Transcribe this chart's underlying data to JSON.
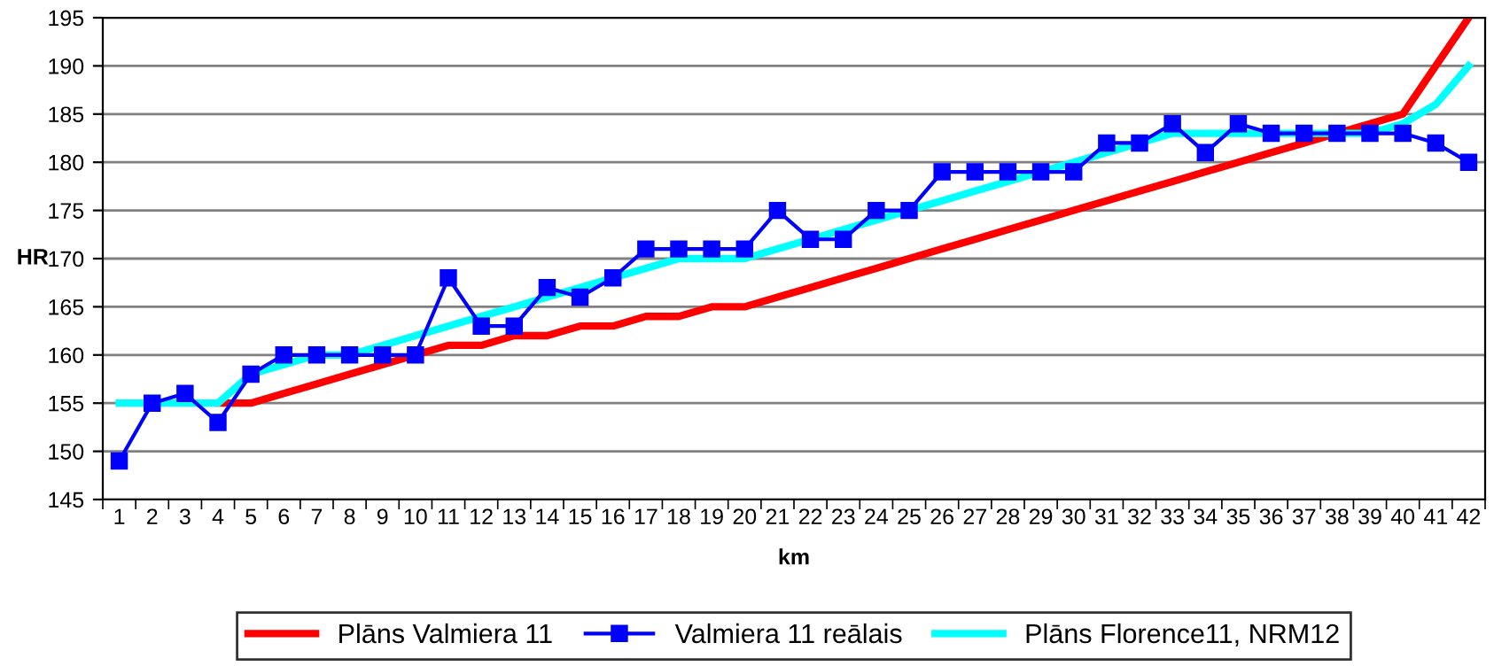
{
  "chart_data": {
    "type": "line",
    "xlabel": "km",
    "ylabel": "HR",
    "categories": [
      "1",
      "2",
      "3",
      "4",
      "5",
      "6",
      "7",
      "8",
      "9",
      "10",
      "11",
      "12",
      "13",
      "14",
      "15",
      "16",
      "17",
      "18",
      "19",
      "20",
      "21",
      "22",
      "23",
      "24",
      "25",
      "26",
      "27",
      "28",
      "29",
      "30",
      "31",
      "32",
      "33",
      "34",
      "35",
      "36",
      "37",
      "38",
      "39",
      "40",
      "41",
      "42"
    ],
    "series": [
      {
        "name": "Plāns Valmiera 11",
        "color": "#ff0000",
        "marker": "none",
        "values": [
          null,
          null,
          null,
          155,
          155,
          156,
          157,
          158,
          159,
          160,
          161,
          161,
          162,
          162,
          163,
          163,
          164,
          164,
          165,
          165,
          166,
          167,
          168,
          169,
          170,
          171,
          172,
          173,
          174,
          175,
          176,
          177,
          178,
          179,
          180,
          181,
          182,
          183,
          184,
          185,
          190,
          195
        ]
      },
      {
        "name": "Valmiera 11 reālais",
        "color": "#0000ff",
        "marker": "square",
        "values": [
          149,
          155,
          156,
          153,
          158,
          160,
          160,
          160,
          160,
          160,
          168,
          163,
          163,
          167,
          166,
          168,
          171,
          171,
          171,
          171,
          175,
          172,
          172,
          175,
          175,
          179,
          179,
          179,
          179,
          179,
          182,
          182,
          184,
          181,
          184,
          183,
          183,
          183,
          183,
          183,
          182,
          180
        ]
      },
      {
        "name": "Plāns Florence11, NRM12",
        "color": "#00ffff",
        "marker": "none",
        "values": [
          155,
          155,
          155,
          155,
          158,
          159,
          160,
          160,
          161,
          162,
          163,
          164,
          165,
          166,
          167,
          168,
          169,
          170,
          170,
          170,
          171,
          172,
          173,
          174,
          175,
          176,
          177,
          178,
          179,
          180,
          181,
          182,
          183,
          183,
          183,
          183,
          183,
          183,
          183,
          184,
          186,
          190
        ]
      }
    ],
    "ylim": [
      145,
      195
    ],
    "yticks": [
      145,
      150,
      155,
      160,
      165,
      170,
      175,
      180,
      185,
      190,
      195
    ],
    "grid": "y",
    "legend": "bottom"
  }
}
